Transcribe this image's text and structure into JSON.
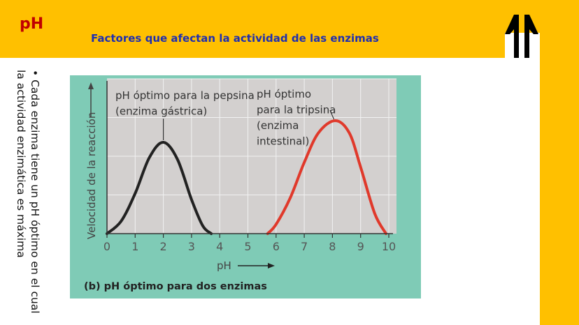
{
  "slide": {
    "title": "pH",
    "subtitle": "Factores que afectan la actividad de las enzimas",
    "bullet_text": "Cada enzima tiene un pH óptimo en el cual la actividad enzimática es máxima",
    "bullet_icon": "bullet-dot",
    "logo_icon": "double-arrow-up-logo",
    "colors": {
      "bar": "#ffc000",
      "title": "#c00000",
      "subtitle": "#1f2fb0"
    }
  },
  "chart_data": {
    "type": "line",
    "xlabel": "pH",
    "ylabel": "Velocidad de la reacción",
    "caption": "(b) pH óptimo para dos enzimas",
    "xlim": [
      0,
      10
    ],
    "ylim": [
      0,
      1
    ],
    "x_ticks": [
      "0",
      "1",
      "2",
      "3",
      "4",
      "5",
      "6",
      "7",
      "8",
      "9",
      "10"
    ],
    "grid": true,
    "colors": {
      "background": "#7fcbb6",
      "plot": "#d3d0cf",
      "grid": "#f2f2f2"
    },
    "series": [
      {
        "color": "#222222",
        "points": [
          [
            0,
            0
          ],
          [
            0.5,
            0.08
          ],
          [
            1,
            0.26
          ],
          [
            1.5,
            0.49
          ],
          [
            2,
            0.59
          ],
          [
            2.5,
            0.48
          ],
          [
            3,
            0.22
          ],
          [
            3.4,
            0.05
          ],
          [
            3.7,
            0
          ]
        ]
      },
      {
        "color": "#e0392b",
        "points": [
          [
            5.7,
            0
          ],
          [
            6,
            0.06
          ],
          [
            6.5,
            0.23
          ],
          [
            7,
            0.46
          ],
          [
            7.5,
            0.65
          ],
          [
            8.1,
            0.73
          ],
          [
            8.6,
            0.65
          ],
          [
            9,
            0.43
          ],
          [
            9.5,
            0.13
          ],
          [
            9.9,
            0
          ]
        ]
      }
    ],
    "annotations": [
      {
        "lines": [
          "pH óptimo para la pepsina",
          "(enzima gástrica)"
        ],
        "x": 2,
        "y": 0.59
      },
      {
        "lines": [
          "pH óptimo",
          "para la tripsina",
          "(enzima",
          "intestinal)"
        ],
        "x": 8.1,
        "y": 0.73
      }
    ]
  }
}
